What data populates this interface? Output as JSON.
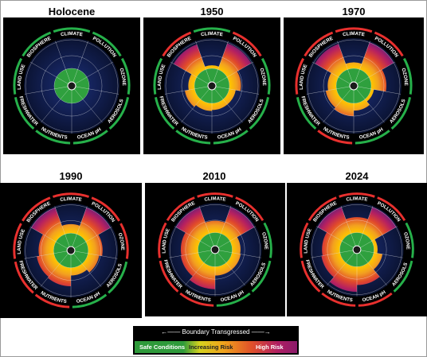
{
  "legend": {
    "title": "Boundary Transgressed",
    "safe": "Safe Conditions",
    "increasing": "Increasing Risk",
    "high": "High Risk"
  },
  "boundaries": [
    "CLIMATE",
    "POLLUTION",
    "OZONE",
    "AEROSOLS",
    "OCEAN pH",
    "NUTRIENTS",
    "FRESHWATER",
    "LAND USE",
    "BIOSPHERE"
  ],
  "panels": [
    {
      "year": "Holocene",
      "levels": [
        0,
        0,
        0,
        0,
        0,
        0,
        0,
        0,
        0
      ],
      "transgressed": [
        false,
        false,
        false,
        false,
        false,
        false,
        false,
        false,
        false
      ]
    },
    {
      "year": "1950",
      "levels": [
        0.1,
        0.92,
        0.38,
        0.22,
        0.22,
        0.25,
        0.33,
        0.2,
        0.88
      ],
      "transgressed": [
        false,
        true,
        false,
        false,
        false,
        false,
        false,
        false,
        true
      ]
    },
    {
      "year": "1970",
      "levels": [
        0.2,
        0.95,
        0.5,
        0.1,
        0.24,
        0.42,
        0.36,
        0.28,
        0.9
      ],
      "transgressed": [
        true,
        true,
        false,
        false,
        false,
        true,
        false,
        true,
        true
      ]
    },
    {
      "year": "1990",
      "levels": [
        0.3,
        0.95,
        0.48,
        0.38,
        0.26,
        0.62,
        0.58,
        0.5,
        0.95
      ],
      "transgressed": [
        true,
        true,
        true,
        false,
        false,
        true,
        true,
        true,
        true
      ]
    },
    {
      "year": "2010",
      "levels": [
        0.4,
        0.95,
        0.28,
        0.3,
        0.3,
        0.76,
        0.6,
        0.58,
        0.95
      ],
      "transgressed": [
        true,
        true,
        false,
        false,
        false,
        true,
        true,
        true,
        true
      ]
    },
    {
      "year": "2024",
      "levels": [
        0.52,
        0.96,
        0.12,
        0.3,
        0.62,
        0.85,
        0.64,
        0.6,
        0.96
      ],
      "transgressed": [
        true,
        true,
        false,
        false,
        true,
        true,
        true,
        true,
        true
      ]
    }
  ]
}
